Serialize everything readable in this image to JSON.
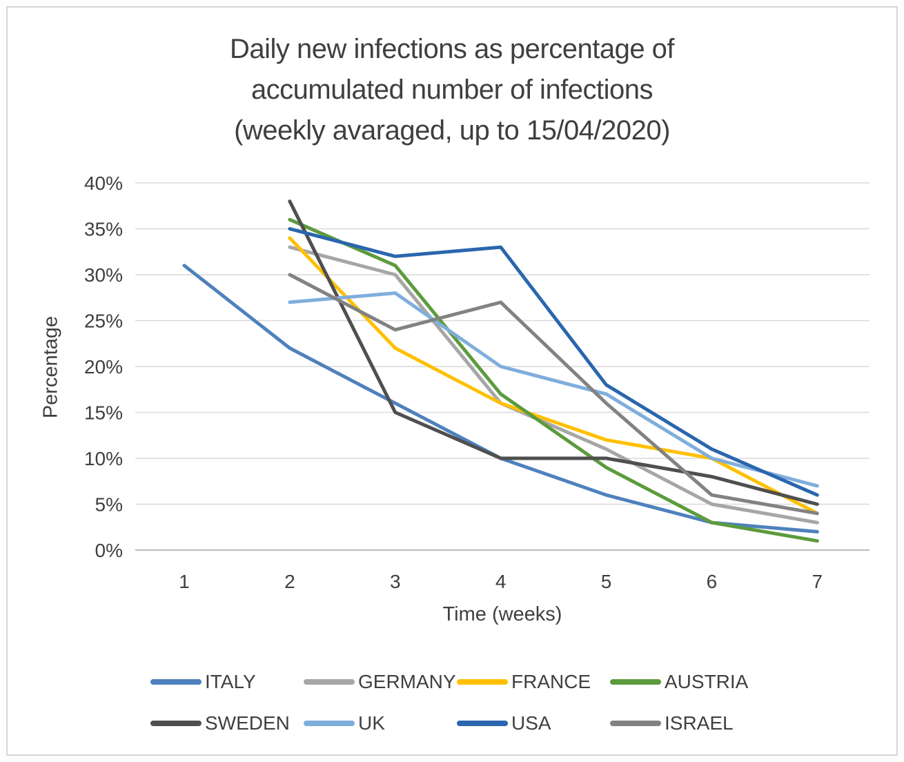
{
  "page": {
    "card_border_color": "#d5d5d5",
    "background_color": "#ffffff"
  },
  "chart_data": {
    "type": "line",
    "title_lines": [
      "Daily new infections as percentage of",
      "accumulated number of infections",
      "(weekly avaraged, up to 15/04/2020)"
    ],
    "xlabel": "Time (weeks)",
    "ylabel": "Percentage",
    "x": [
      1,
      2,
      3,
      4,
      5,
      6,
      7
    ],
    "x_tick_labels": [
      "1",
      "2",
      "3",
      "4",
      "5",
      "6",
      "7"
    ],
    "y_ticks": [
      0,
      5,
      10,
      15,
      20,
      25,
      30,
      35,
      40
    ],
    "y_tick_suffix": "%",
    "ylim": [
      0,
      40
    ],
    "grid": true,
    "legend_position": "bottom",
    "colors": {
      "gridline": "#d9d9d9",
      "axis_line": "#bfbfbf",
      "text": "#3f3f3f"
    },
    "series": [
      {
        "name": "ITALY",
        "color": "#4e81bd",
        "values": [
          31,
          22,
          16,
          10,
          6,
          3,
          2
        ]
      },
      {
        "name": "GERMANY",
        "color": "#a6a6a6",
        "values": [
          null,
          33,
          30,
          16,
          11,
          5,
          3
        ]
      },
      {
        "name": "FRANCE",
        "color": "#ffc001",
        "values": [
          null,
          34,
          22,
          16,
          12,
          10,
          4
        ]
      },
      {
        "name": "AUSTRIA",
        "color": "#5c9b3d",
        "values": [
          null,
          36,
          31,
          17,
          9,
          3,
          1
        ]
      },
      {
        "name": "SWEDEN",
        "color": "#4f4f4f",
        "values": [
          null,
          38,
          15,
          10,
          10,
          8,
          5
        ]
      },
      {
        "name": "UK",
        "color": "#7faedc",
        "values": [
          null,
          27,
          28,
          20,
          17,
          10,
          7
        ]
      },
      {
        "name": "USA",
        "color": "#2a66ae",
        "values": [
          null,
          35,
          32,
          33,
          18,
          11,
          6
        ]
      },
      {
        "name": "ISRAEL",
        "color": "#828282",
        "values": [
          null,
          30,
          24,
          27,
          16,
          6,
          4
        ]
      }
    ]
  }
}
